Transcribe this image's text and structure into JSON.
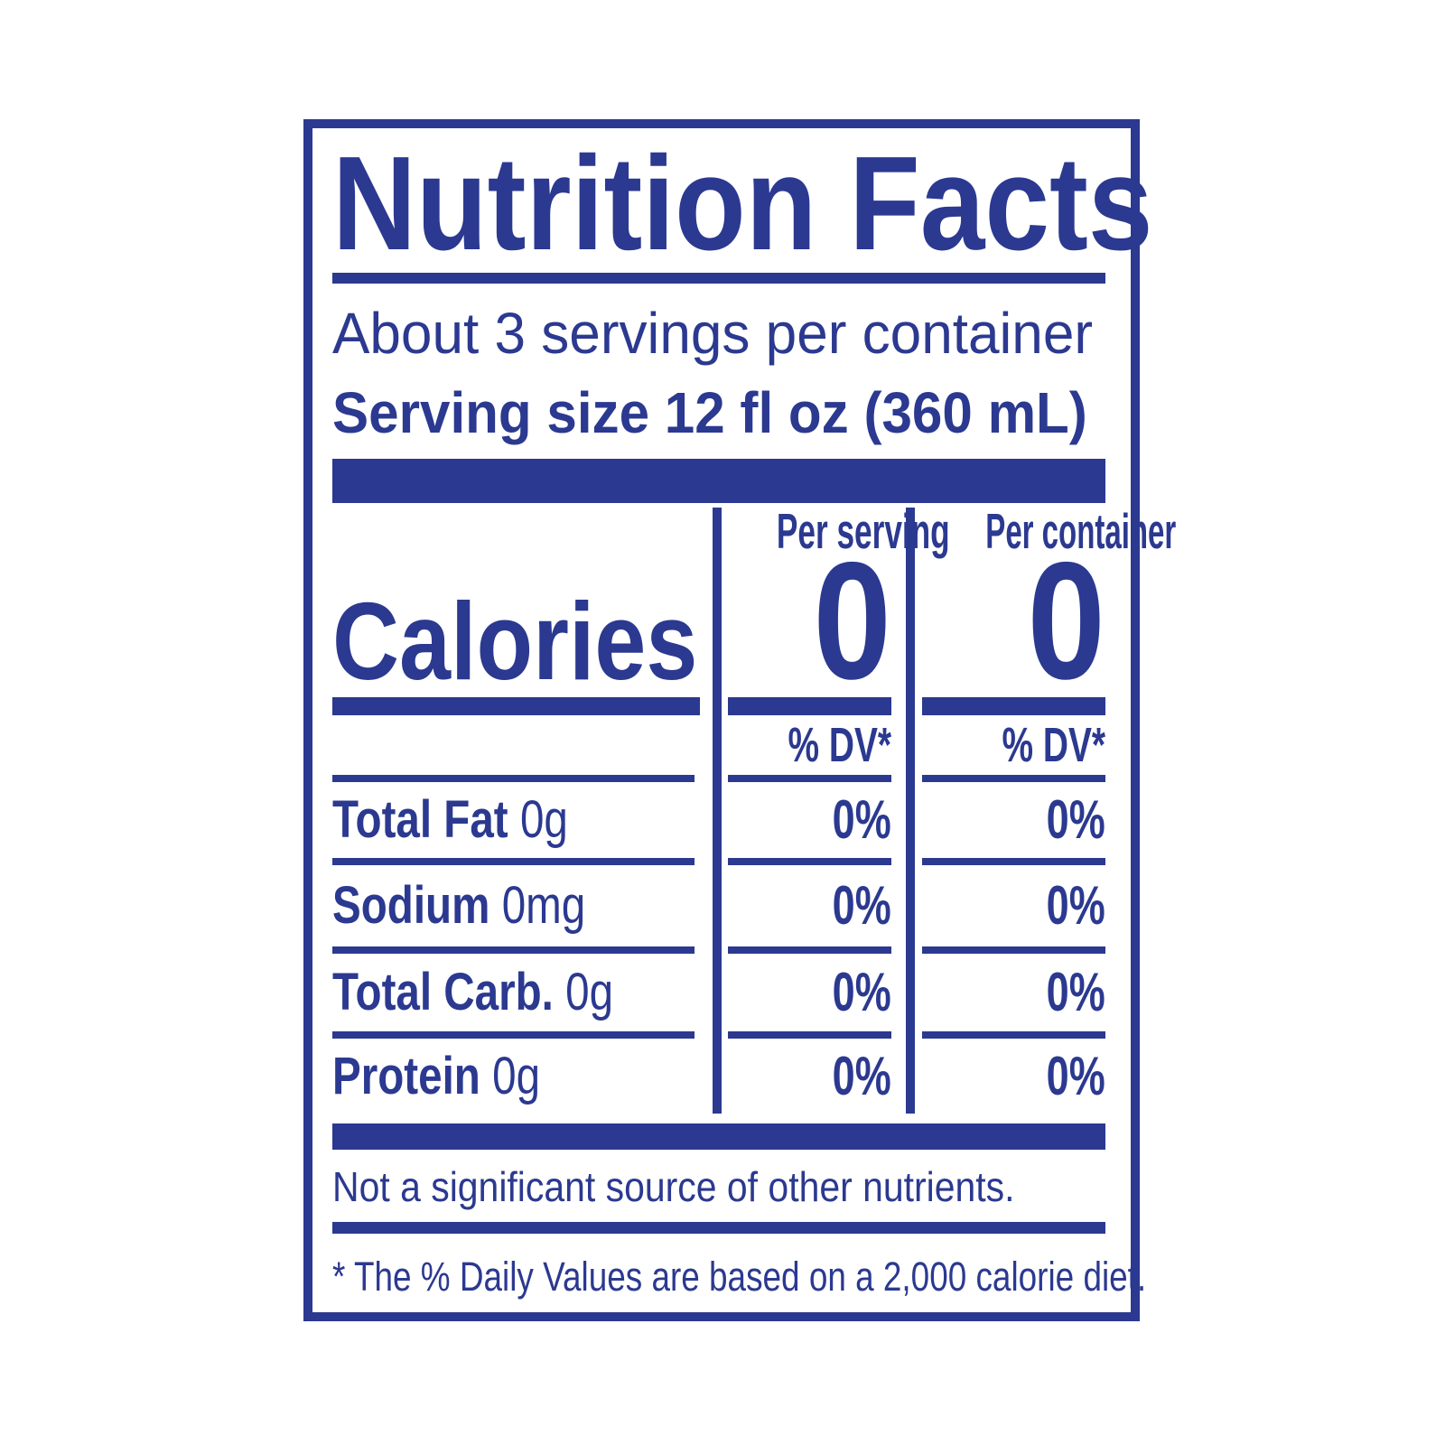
{
  "accent_color": "#2B3990",
  "label": {
    "title": "Nutrition Facts",
    "servings_line": "About 3 servings per container",
    "serving_size_line": "Serving size 12 fl oz (360 mL)",
    "columns": {
      "serving": "Per serving",
      "container": "Per container"
    },
    "calories": {
      "label": "Calories",
      "per_serving": "0",
      "per_container": "0"
    },
    "dv_header": "% DV*",
    "rows": [
      {
        "name": "Total Fat",
        "amount": "0g",
        "per_serving": "0%",
        "per_container": "0%"
      },
      {
        "name": "Sodium",
        "amount": "0mg",
        "per_serving": "0%",
        "per_container": "0%"
      },
      {
        "name": "Total Carb.",
        "amount": "0g",
        "per_serving": "0%",
        "per_container": "0%"
      },
      {
        "name": "Protein",
        "amount": "0g",
        "per_serving": "0%",
        "per_container": "0%"
      }
    ],
    "note_other_nutrients": "Not a significant source of other nutrients.",
    "footnote_dv": "* The % Daily Values are based on a 2,000 calorie diet."
  }
}
